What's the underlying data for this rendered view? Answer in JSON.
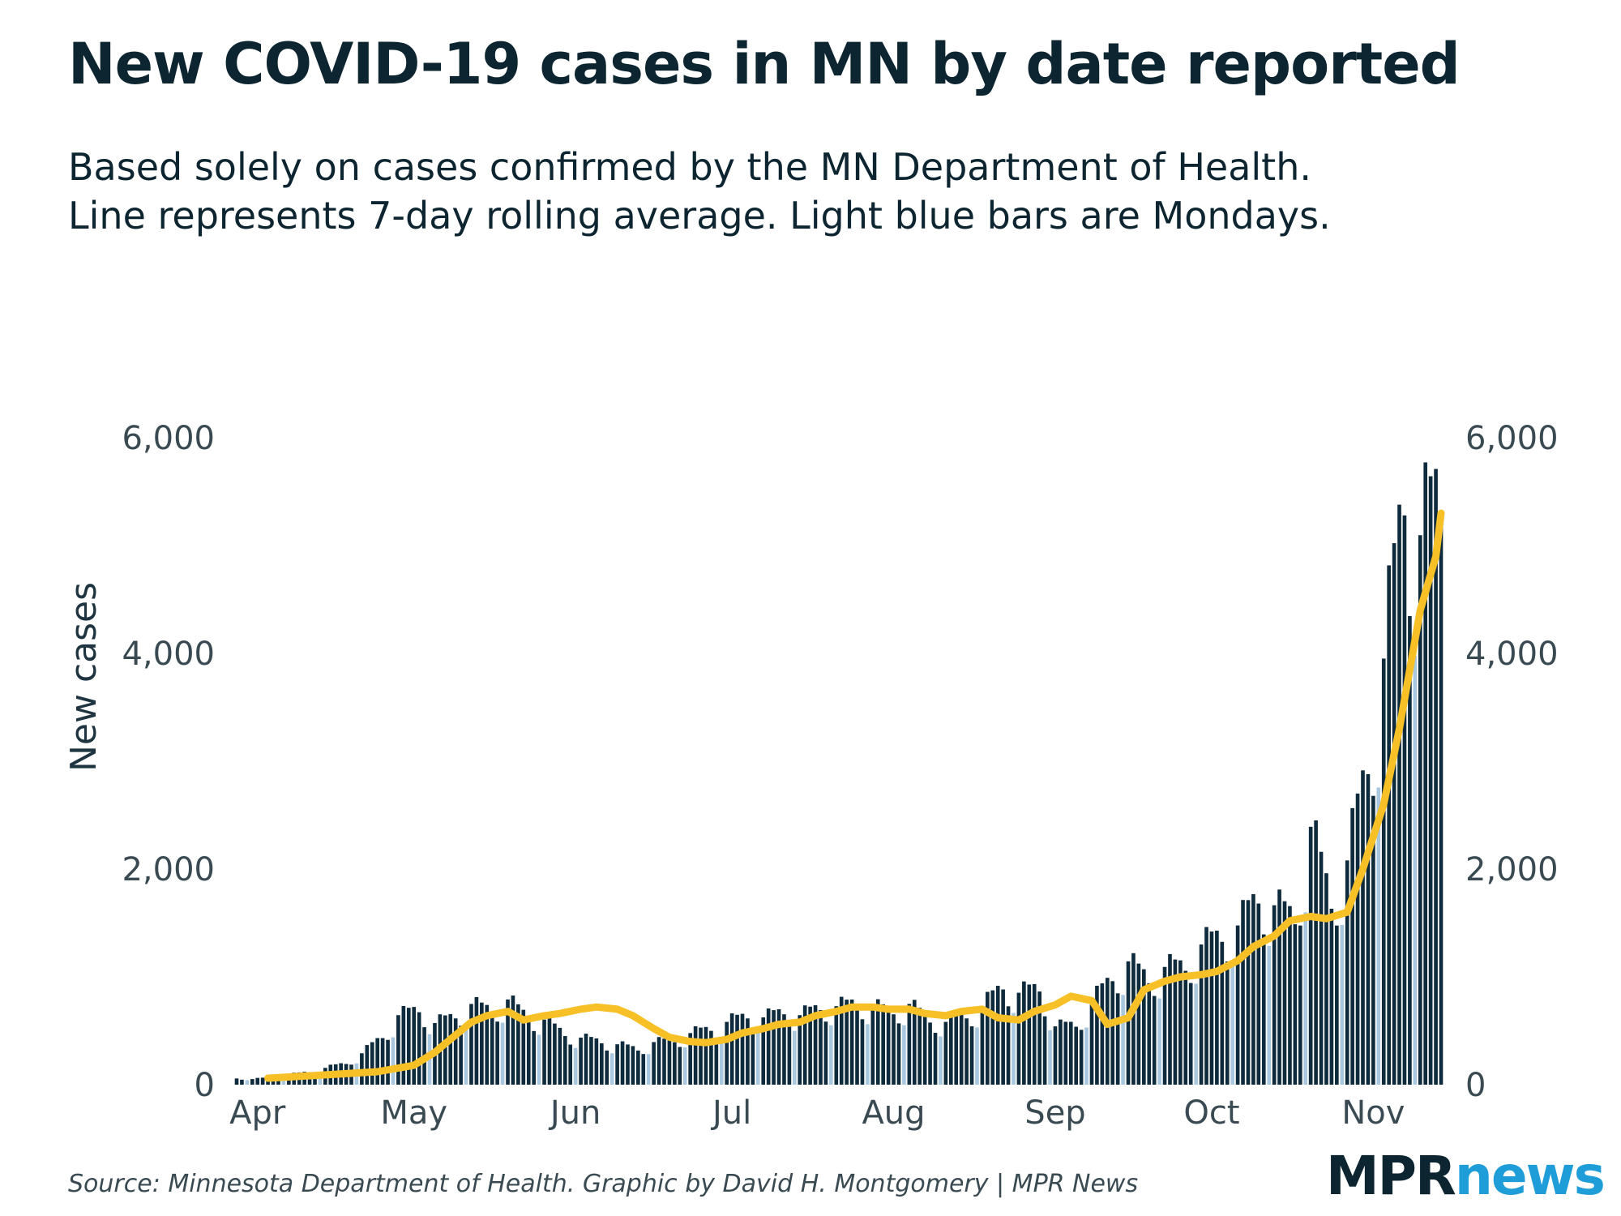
{
  "title": "New COVID-19 cases in MN by date reported",
  "subtitle": [
    "Based solely on cases confirmed by the MN Department of Health.",
    "Line represents 7-day rolling average. Light blue bars are Mondays."
  ],
  "source": "Source: Minnesota Department of Health. Graphic by David H. Montgomery | MPR News",
  "logo": {
    "part1": "MPR",
    "part2": "news"
  },
  "colors": {
    "bar": "#0e2a3d",
    "monday_bar": "#a9c8e0",
    "line": "#f6c026",
    "text": "#0d2530"
  },
  "chart_data": {
    "type": "bar",
    "ylabel": "New cases",
    "ylim": [
      0,
      7500
    ],
    "yticks": [
      0,
      2000,
      4000,
      6000
    ],
    "ytick_labels": [
      "0",
      "2,000",
      "4,000",
      "6,000"
    ],
    "xtick_labels": [
      "Apr",
      "May",
      "Jun",
      "Jul",
      "Aug",
      "Sep",
      "Oct",
      "Nov"
    ],
    "grid": false,
    "x_range": [
      "2020-03-28",
      "2020-11-14"
    ],
    "series": [
      {
        "type": "bar",
        "x": [
          "2020-03-28",
          "2020-03-31",
          "2020-04-04",
          "2020-04-07",
          "2020-04-11",
          "2020-04-14",
          "2020-04-18",
          "2020-04-21",
          "2020-04-25",
          "2020-04-28",
          "2020-05-02",
          "2020-05-05",
          "2020-05-09",
          "2020-05-12",
          "2020-05-16",
          "2020-05-19",
          "2020-05-23",
          "2020-05-26",
          "2020-05-30",
          "2020-06-02",
          "2020-06-06",
          "2020-06-09",
          "2020-06-13",
          "2020-06-16",
          "2020-06-20",
          "2020-06-23",
          "2020-06-27",
          "2020-06-30",
          "2020-07-04",
          "2020-07-07",
          "2020-07-11",
          "2020-07-14",
          "2020-07-18",
          "2020-07-21",
          "2020-07-25",
          "2020-07-28",
          "2020-08-01",
          "2020-08-04",
          "2020-08-08",
          "2020-08-11",
          "2020-08-15",
          "2020-08-18",
          "2020-08-22",
          "2020-08-25",
          "2020-08-29",
          "2020-09-01",
          "2020-09-05",
          "2020-09-08",
          "2020-09-12",
          "2020-09-15",
          "2020-09-19",
          "2020-09-22",
          "2020-09-26",
          "2020-09-29",
          "2020-10-03",
          "2020-10-06",
          "2020-10-10",
          "2020-10-13",
          "2020-10-17",
          "2020-10-20",
          "2020-10-24",
          "2020-10-27",
          "2020-10-31",
          "2020-11-03",
          "2020-11-07",
          "2020-11-10",
          "2020-11-14"
        ],
        "values": [
          60,
          50,
          70,
          90,
          120,
          150,
          200,
          280,
          450,
          620,
          700,
          550,
          640,
          720,
          690,
          760,
          620,
          580,
          470,
          420,
          400,
          360,
          330,
          380,
          410,
          460,
          520,
          560,
          640,
          600,
          680,
          620,
          720,
          700,
          760,
          700,
          680,
          720,
          600,
          560,
          640,
          700,
          920,
          820,
          900,
          520,
          560,
          740,
          1000,
          1100,
          980,
          1050,
          1100,
          1250,
          1380,
          1420,
          1750,
          1600,
          1550,
          2300,
          1700,
          2000,
          3000,
          3800,
          5500,
          4900,
          5550
        ]
      },
      {
        "type": "line",
        "name": "7-day rolling average",
        "x": [
          "2020-04-03",
          "2020-04-10",
          "2020-04-17",
          "2020-04-24",
          "2020-05-01",
          "2020-05-05",
          "2020-05-08",
          "2020-05-12",
          "2020-05-15",
          "2020-05-19",
          "2020-05-22",
          "2020-05-26",
          "2020-05-29",
          "2020-06-02",
          "2020-06-05",
          "2020-06-09",
          "2020-06-12",
          "2020-06-16",
          "2020-06-19",
          "2020-06-23",
          "2020-06-26",
          "2020-06-30",
          "2020-07-03",
          "2020-07-07",
          "2020-07-10",
          "2020-07-14",
          "2020-07-17",
          "2020-07-21",
          "2020-07-24",
          "2020-07-28",
          "2020-07-31",
          "2020-08-04",
          "2020-08-07",
          "2020-08-11",
          "2020-08-14",
          "2020-08-18",
          "2020-08-21",
          "2020-08-25",
          "2020-08-28",
          "2020-09-01",
          "2020-09-04",
          "2020-09-08",
          "2020-09-11",
          "2020-09-15",
          "2020-09-18",
          "2020-09-22",
          "2020-09-25",
          "2020-09-29",
          "2020-10-02",
          "2020-10-06",
          "2020-10-09",
          "2020-10-13",
          "2020-10-16",
          "2020-10-20",
          "2020-10-23",
          "2020-10-27",
          "2020-10-30",
          "2020-11-03",
          "2020-11-06",
          "2020-11-10",
          "2020-11-13",
          "2020-11-14"
        ],
        "values": [
          60,
          80,
          100,
          120,
          180,
          300,
          420,
          580,
          640,
          680,
          600,
          640,
          660,
          700,
          720,
          700,
          640,
          520,
          440,
          400,
          390,
          420,
          480,
          520,
          560,
          580,
          640,
          680,
          720,
          720,
          700,
          700,
          660,
          640,
          680,
          700,
          620,
          600,
          680,
          740,
          820,
          780,
          560,
          620,
          880,
          960,
          1000,
          1020,
          1050,
          1150,
          1280,
          1380,
          1520,
          1560,
          1540,
          1600,
          2000,
          2600,
          3300,
          4400,
          4900,
          5300
        ]
      }
    ]
  }
}
